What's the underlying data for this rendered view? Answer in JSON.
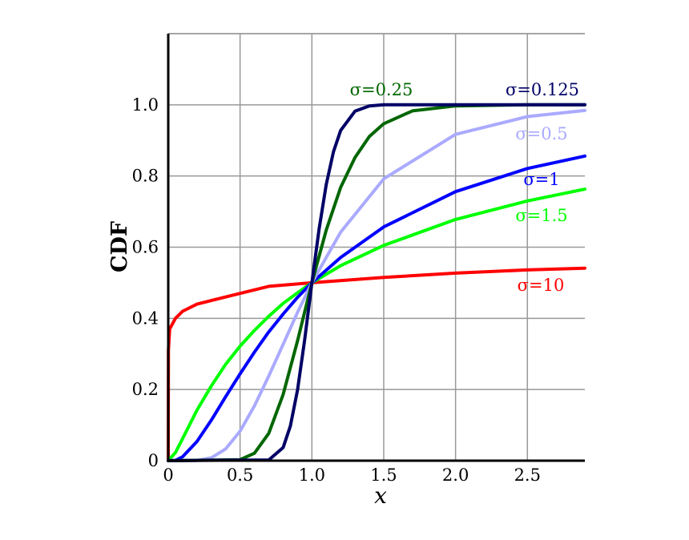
{
  "chart_data": {
    "type": "line",
    "title": "",
    "xlabel": "x",
    "ylabel": "CDF",
    "xlim": [
      0,
      2.9
    ],
    "ylim": [
      0,
      1.2
    ],
    "grid": true,
    "x_ticks": [
      "0",
      "0.5",
      "1.0",
      "1.5",
      "2.0",
      "2.5"
    ],
    "x_tick_values": [
      0,
      0.5,
      1.0,
      1.5,
      2.0,
      2.5
    ],
    "y_ticks": [
      "0",
      "0.2",
      "0.4",
      "0.6",
      "0.8",
      "1.0"
    ],
    "y_tick_values": [
      0,
      0.2,
      0.4,
      0.6,
      0.8,
      1.0
    ],
    "series": [
      {
        "name": "σ=10",
        "color": "#ff0000",
        "x": [
          0,
          0.001,
          0.01,
          0.05,
          0.1,
          0.2,
          0.3,
          0.5,
          0.7,
          1.0,
          1.5,
          2.0,
          2.5,
          2.9
        ],
        "y": [
          0.0,
          0.31,
          0.37,
          0.4,
          0.42,
          0.44,
          0.45,
          0.47,
          0.49,
          0.5,
          0.515,
          0.527,
          0.536,
          0.541
        ]
      },
      {
        "name": "σ=1.5",
        "color": "#00ff00",
        "x": [
          0,
          0.05,
          0.1,
          0.2,
          0.3,
          0.4,
          0.5,
          0.6,
          0.7,
          0.8,
          0.9,
          1.0,
          1.2,
          1.5,
          2.0,
          2.5,
          2.9
        ],
        "y": [
          0.0,
          0.023,
          0.062,
          0.142,
          0.21,
          0.271,
          0.322,
          0.366,
          0.406,
          0.442,
          0.472,
          0.5,
          0.548,
          0.605,
          0.678,
          0.73,
          0.763
        ]
      },
      {
        "name": "σ=1",
        "color": "#0000ff",
        "x": [
          0,
          0.05,
          0.1,
          0.2,
          0.3,
          0.4,
          0.5,
          0.6,
          0.7,
          0.8,
          0.9,
          1.0,
          1.2,
          1.5,
          2.0,
          2.5,
          2.9
        ],
        "y": [
          0.0,
          0.001,
          0.011,
          0.054,
          0.114,
          0.18,
          0.244,
          0.305,
          0.362,
          0.412,
          0.459,
          0.5,
          0.571,
          0.657,
          0.756,
          0.821,
          0.856
        ]
      },
      {
        "name": "σ=0.5",
        "color": "#aaaaff",
        "x": [
          0,
          0.2,
          0.3,
          0.4,
          0.5,
          0.6,
          0.7,
          0.8,
          0.9,
          1.0,
          1.2,
          1.5,
          2.0,
          2.5,
          2.9
        ],
        "y": [
          0.0,
          0.0006,
          0.008,
          0.033,
          0.083,
          0.154,
          0.238,
          0.327,
          0.417,
          0.5,
          0.642,
          0.792,
          0.917,
          0.967,
          0.984
        ]
      },
      {
        "name": "σ=0.25",
        "color": "#006600",
        "x": [
          0,
          0.5,
          0.6,
          0.7,
          0.8,
          0.9,
          1.0,
          1.1,
          1.2,
          1.3,
          1.4,
          1.5,
          1.7,
          2.0,
          2.5,
          2.9
        ],
        "y": [
          0.0,
          0.003,
          0.021,
          0.077,
          0.186,
          0.337,
          0.5,
          0.648,
          0.768,
          0.852,
          0.911,
          0.947,
          0.983,
          0.997,
          1.0,
          1.0
        ]
      },
      {
        "name": "σ=0.125",
        "color": "#000066",
        "x": [
          0,
          0.7,
          0.8,
          0.85,
          0.9,
          0.95,
          1.0,
          1.05,
          1.1,
          1.15,
          1.2,
          1.3,
          1.4,
          1.5,
          2.0,
          2.9
        ],
        "y": [
          0.0,
          0.002,
          0.037,
          0.097,
          0.199,
          0.34,
          0.5,
          0.651,
          0.776,
          0.868,
          0.928,
          0.982,
          0.997,
          1.0,
          1.0,
          1.0
        ]
      }
    ]
  }
}
